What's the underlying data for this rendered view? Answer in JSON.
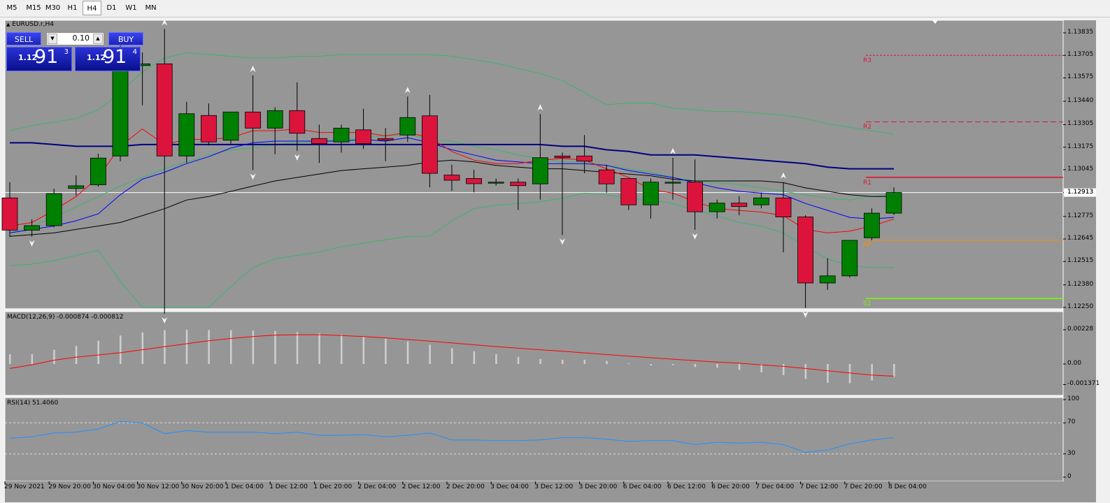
{
  "timeframes": [
    {
      "label": "M5",
      "active": false
    },
    {
      "label": "M15",
      "active": false
    },
    {
      "label": "M30",
      "active": false
    },
    {
      "label": "H1",
      "active": false
    },
    {
      "label": "H4",
      "active": true
    },
    {
      "label": "D1",
      "active": false
    },
    {
      "label": "W1",
      "active": false
    },
    {
      "label": "MN",
      "active": false
    }
  ],
  "chart_title": "EURUSD.r,H4",
  "one_click": {
    "sell_label": "SELL",
    "buy_label": "BUY",
    "lot": "0.10",
    "sell_big": "1.12",
    "sell_pts": "91",
    "sell_sup": "3",
    "buy_big": "1.12",
    "buy_pts": "91",
    "buy_sup": "4"
  },
  "macd_label": "MACD(12,26,9) -0.000874 -0.000812",
  "rsi_label": "RSI(14) 51.4060",
  "current_price": "1.12913",
  "pivot_labels": [
    "R3",
    "R2",
    "R1",
    "PP",
    "S1"
  ],
  "colors": {
    "chart_bg": "#969696",
    "bull": "#008000",
    "bear": "#dc143c",
    "ma_red": "#ff0000",
    "ma_blue": "#0000ff",
    "ma_navy": "#000080",
    "ma_black": "#000000",
    "bollinger": "#3cb371",
    "macd_signal": "#ff0000",
    "rsi_line": "#1e90ff",
    "r_levels": "#dc143c",
    "pp": "#ff8c00",
    "s1": "#7cfc00"
  },
  "chart_data": [
    {
      "type": "candlestick",
      "title": "EURUSD.r,H4",
      "y_ticks": [
        "1.13835",
        "1.13705",
        "1.13575",
        "1.13440",
        "1.13305",
        "1.13175",
        "1.13045",
        "1.12913",
        "1.12775",
        "1.12645",
        "1.12515",
        "1.12380",
        "1.12250"
      ],
      "x_ticks": [
        "29 Nov 2021",
        "29 Nov 20:00",
        "30 Nov 04:00",
        "30 Nov 12:00",
        "30 Nov 20:00",
        "1 Dec 04:00",
        "1 Dec 12:00",
        "1 Dec 20:00",
        "2 Dec 04:00",
        "2 Dec 12:00",
        "2 Dec 20:00",
        "3 Dec 04:00",
        "3 Dec 12:00",
        "3 Dec 20:00",
        "6 Dec 04:00",
        "6 Dec 12:00",
        "6 Dec 20:00",
        "7 Dec 04:00",
        "7 Dec 12:00",
        "7 Dec 20:00",
        "8 Dec 04:00"
      ],
      "candles": [
        {
          "o": 1.12882,
          "h": 1.12973,
          "l": 1.12658,
          "c": 1.12696
        },
        {
          "o": 1.12696,
          "h": 1.12758,
          "l": 1.12658,
          "c": 1.12722
        },
        {
          "o": 1.12722,
          "h": 1.12935,
          "l": 1.12712,
          "c": 1.12907
        },
        {
          "o": 1.12937,
          "h": 1.13012,
          "l": 1.12897,
          "c": 1.12952
        },
        {
          "o": 1.12958,
          "h": 1.13137,
          "l": 1.12947,
          "c": 1.13112
        },
        {
          "o": 1.13124,
          "h": 1.13783,
          "l": 1.13094,
          "c": 1.13676
        },
        {
          "o": 1.13646,
          "h": 1.13722,
          "l": 1.13417,
          "c": 1.13656
        },
        {
          "o": 1.13656,
          "h": 1.13857,
          "l": 1.12213,
          "c": 1.13124
        },
        {
          "o": 1.13124,
          "h": 1.13437,
          "l": 1.13084,
          "c": 1.13368
        },
        {
          "o": 1.13358,
          "h": 1.13427,
          "l": 1.13185,
          "c": 1.13205
        },
        {
          "o": 1.13215,
          "h": 1.13378,
          "l": 1.13195,
          "c": 1.13378
        },
        {
          "o": 1.13378,
          "h": 1.13589,
          "l": 1.13043,
          "c": 1.13285
        },
        {
          "o": 1.13285,
          "h": 1.13406,
          "l": 1.13134,
          "c": 1.13386
        },
        {
          "o": 1.13386,
          "h": 1.13549,
          "l": 1.13154,
          "c": 1.13255
        },
        {
          "o": 1.13225,
          "h": 1.13305,
          "l": 1.13084,
          "c": 1.13195
        },
        {
          "o": 1.13205,
          "h": 1.13305,
          "l": 1.13144,
          "c": 1.13285
        },
        {
          "o": 1.13275,
          "h": 1.13397,
          "l": 1.13165,
          "c": 1.13195
        },
        {
          "o": 1.13225,
          "h": 1.13285,
          "l": 1.13094,
          "c": 1.13215
        },
        {
          "o": 1.13245,
          "h": 1.13467,
          "l": 1.13205,
          "c": 1.13346
        },
        {
          "o": 1.13356,
          "h": 1.13477,
          "l": 1.12943,
          "c": 1.13024
        },
        {
          "o": 1.13014,
          "h": 1.13074,
          "l": 1.12923,
          "c": 1.12984
        },
        {
          "o": 1.12994,
          "h": 1.13044,
          "l": 1.12914,
          "c": 1.12964
        },
        {
          "o": 1.12973,
          "h": 1.12994,
          "l": 1.12953,
          "c": 1.12973
        },
        {
          "o": 1.12973,
          "h": 1.12994,
          "l": 1.12812,
          "c": 1.12953
        },
        {
          "o": 1.12963,
          "h": 1.13366,
          "l": 1.12872,
          "c": 1.13114
        },
        {
          "o": 1.13124,
          "h": 1.13144,
          "l": 1.12668,
          "c": 1.13114
        },
        {
          "o": 1.13124,
          "h": 1.13245,
          "l": 1.13024,
          "c": 1.13094
        },
        {
          "o": 1.13044,
          "h": 1.13074,
          "l": 1.12912,
          "c": 1.12963
        },
        {
          "o": 1.12994,
          "h": 1.12994,
          "l": 1.12812,
          "c": 1.12842
        },
        {
          "o": 1.12842,
          "h": 1.12994,
          "l": 1.12763,
          "c": 1.12973
        },
        {
          "o": 1.12973,
          "h": 1.13114,
          "l": 1.12872,
          "c": 1.12973
        },
        {
          "o": 1.12973,
          "h": 1.13104,
          "l": 1.12698,
          "c": 1.12802
        },
        {
          "o": 1.12802,
          "h": 1.12872,
          "l": 1.12763,
          "c": 1.12852
        },
        {
          "o": 1.12852,
          "h": 1.12892,
          "l": 1.12782,
          "c": 1.12832
        },
        {
          "o": 1.12842,
          "h": 1.12913,
          "l": 1.12822,
          "c": 1.12882
        },
        {
          "o": 1.12882,
          "h": 1.12973,
          "l": 1.12568,
          "c": 1.12772
        },
        {
          "o": 1.12772,
          "h": 1.12782,
          "l": 1.12247,
          "c": 1.12391
        },
        {
          "o": 1.12391,
          "h": 1.12534,
          "l": 1.12351,
          "c": 1.12432
        },
        {
          "o": 1.12432,
          "h": 1.12627,
          "l": 1.12422,
          "c": 1.12637
        },
        {
          "o": 1.12652,
          "h": 1.12822,
          "l": 1.12637,
          "c": 1.12794
        },
        {
          "o": 1.12794,
          "h": 1.12943,
          "l": 1.12784,
          "c": 1.12913
        }
      ],
      "ma_red": [
        1.1272,
        1.1274,
        1.1281,
        1.1289,
        1.13,
        1.1318,
        1.1328,
        1.1319,
        1.1322,
        1.1322,
        1.1323,
        1.1327,
        1.1327,
        1.1328,
        1.1326,
        1.1326,
        1.1326,
        1.1324,
        1.1326,
        1.1323,
        1.1315,
        1.131,
        1.1308,
        1.1308,
        1.131,
        1.1311,
        1.131,
        1.1305,
        1.13,
        1.1293,
        1.1291,
        1.1286,
        1.1282,
        1.1281,
        1.128,
        1.1278,
        1.127,
        1.1268,
        1.1269,
        1.1272,
        1.1276
      ],
      "ma_blue": [
        1.1268,
        1.127,
        1.1272,
        1.1275,
        1.1279,
        1.129,
        1.1299,
        1.1303,
        1.1308,
        1.1312,
        1.1317,
        1.132,
        1.1321,
        1.1321,
        1.1321,
        1.1321,
        1.1322,
        1.1321,
        1.1323,
        1.132,
        1.1316,
        1.1313,
        1.131,
        1.1309,
        1.1308,
        1.1308,
        1.1308,
        1.1307,
        1.1304,
        1.1302,
        1.13,
        1.1297,
        1.1294,
        1.1292,
        1.1291,
        1.129,
        1.1285,
        1.1281,
        1.1277,
        1.1276,
        1.1277
      ],
      "ma_black": [
        1.1266,
        1.1267,
        1.1268,
        1.127,
        1.1272,
        1.1274,
        1.1278,
        1.1282,
        1.1287,
        1.1289,
        1.1292,
        1.1295,
        1.1298,
        1.13,
        1.1302,
        1.1304,
        1.1305,
        1.1306,
        1.1307,
        1.1309,
        1.131,
        1.1309,
        1.1307,
        1.1306,
        1.1305,
        1.1305,
        1.1304,
        1.1303,
        1.1302,
        1.1301,
        1.1299,
        1.1298,
        1.1298,
        1.1298,
        1.1298,
        1.1297,
        1.1294,
        1.1292,
        1.129,
        1.1289,
        1.1289
      ],
      "ma_navy": [
        1.132,
        1.132,
        1.1319,
        1.1318,
        1.1318,
        1.1318,
        1.1319,
        1.1319,
        1.1319,
        1.1319,
        1.1319,
        1.1319,
        1.1319,
        1.1319,
        1.1319,
        1.1319,
        1.1319,
        1.1319,
        1.1319,
        1.1319,
        1.1319,
        1.1319,
        1.1319,
        1.1319,
        1.1319,
        1.1318,
        1.1318,
        1.1316,
        1.1315,
        1.1313,
        1.1313,
        1.1313,
        1.1312,
        1.1311,
        1.131,
        1.1309,
        1.1308,
        1.1306,
        1.1305,
        1.1305,
        1.1305
      ],
      "bb_upper": [
        1.1327,
        1.133,
        1.1332,
        1.1334,
        1.1339,
        1.1349,
        1.1361,
        1.1369,
        1.1372,
        1.1371,
        1.137,
        1.1369,
        1.1369,
        1.137,
        1.137,
        1.1371,
        1.1371,
        1.1371,
        1.1371,
        1.1371,
        1.137,
        1.1368,
        1.1366,
        1.1363,
        1.136,
        1.1356,
        1.1349,
        1.1342,
        1.1343,
        1.1343,
        1.134,
        1.1339,
        1.1338,
        1.1338,
        1.1337,
        1.1336,
        1.1334,
        1.1331,
        1.1329,
        1.1327,
        1.1325
      ],
      "bb_mid": [
        1.1268,
        1.1272,
        1.1277,
        1.1283,
        1.1289,
        1.1295,
        1.13,
        1.1305,
        1.1309,
        1.1313,
        1.1316,
        1.1317,
        1.1319,
        1.132,
        1.1321,
        1.1322,
        1.1323,
        1.1324,
        1.1325,
        1.1322,
        1.1321,
        1.1318,
        1.1316,
        1.1313,
        1.1311,
        1.1309,
        1.1309,
        1.1307,
        1.1305,
        1.1303,
        1.13,
        1.1298,
        1.1297,
        1.1296,
        1.1294,
        1.1292,
        1.129,
        1.1288,
        1.1287,
        1.1289,
        1.129
      ],
      "bb_lower": [
        1.1249,
        1.125,
        1.1252,
        1.1255,
        1.1258,
        1.124,
        1.1225,
        1.1225,
        1.1225,
        1.1225,
        1.1237,
        1.1248,
        1.1253,
        1.1255,
        1.1257,
        1.126,
        1.1262,
        1.1264,
        1.1266,
        1.1266,
        1.1275,
        1.1282,
        1.1284,
        1.1285,
        1.1286,
        1.1288,
        1.1291,
        1.129,
        1.1288,
        1.1287,
        1.1285,
        1.1281,
        1.1278,
        1.1274,
        1.1272,
        1.1268,
        1.126,
        1.1253,
        1.1249,
        1.1248,
        1.1248
      ],
      "pivots": {
        "R3": 1.13705,
        "R2": 1.13321,
        "R1": 1.13001,
        "PP": 1.12637,
        "S1": 1.12301
      }
    },
    {
      "type": "bar",
      "title": "MACD(12,26,9) -0.000874 -0.000812",
      "y_ticks": [
        "0.00228",
        "0.00",
        "-0.001371"
      ],
      "ylim": [
        -0.00152,
        0.00245
      ],
      "hist": [
        0.00065,
        0.00065,
        0.00095,
        0.0012,
        0.00155,
        0.0019,
        0.0021,
        0.00225,
        0.00228,
        0.00226,
        0.00225,
        0.00222,
        0.0022,
        0.00212,
        0.00205,
        0.00195,
        0.00182,
        0.00168,
        0.0015,
        0.00128,
        0.00105,
        0.00085,
        0.00065,
        0.00048,
        0.00033,
        0.00028,
        0.00028,
        0.0002,
        5e-05,
        -0.0001,
        -8e-05,
        -0.0002,
        -0.00025,
        -0.0004,
        -0.00055,
        -0.00075,
        -0.001,
        -0.00125,
        -0.00128,
        -0.0011,
        -0.00087
      ],
      "signal": [
        -0.0003,
        -5e-05,
        0.00025,
        0.00045,
        0.0006,
        0.00075,
        0.00095,
        0.00115,
        0.00135,
        0.00155,
        0.0017,
        0.00183,
        0.00192,
        0.00195,
        0.00195,
        0.0019,
        0.00183,
        0.00174,
        0.00163,
        0.00152,
        0.0014,
        0.00128,
        0.00116,
        0.00105,
        0.00095,
        0.00085,
        0.00074,
        0.00063,
        0.00052,
        0.00042,
        0.00032,
        0.00022,
        0.00013,
        5e-05,
        -6e-05,
        -0.00016,
        -0.0003,
        -0.00045,
        -0.0006,
        -0.00074,
        -0.00081
      ]
    },
    {
      "type": "line",
      "title": "RSI(14) 51.4060",
      "y_ticks": [
        "100",
        "70",
        "30",
        "0"
      ],
      "ylim": [
        0,
        100
      ],
      "levels": [
        70,
        30
      ],
      "values": [
        50,
        52,
        57,
        58,
        62,
        72,
        70,
        56,
        60,
        58,
        58,
        58,
        56,
        58,
        54,
        54,
        55,
        52,
        54,
        57,
        48,
        48,
        47,
        47,
        48,
        51,
        51,
        49,
        46,
        47,
        47,
        42,
        45,
        44,
        45,
        42,
        32,
        35,
        43,
        48,
        51
      ]
    }
  ]
}
